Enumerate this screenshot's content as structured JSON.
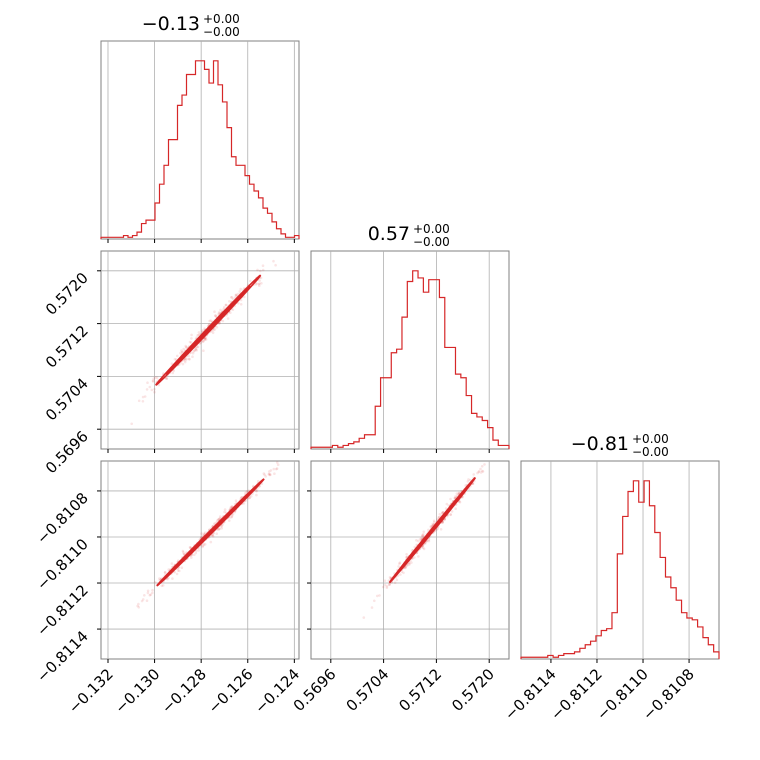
{
  "colors": {
    "accent": "#d62728",
    "grid": "#b0b0b0",
    "frame": "#808080"
  },
  "titles": [
    {
      "main": "−0.13",
      "sup": "+0.00",
      "sub": "−0.00"
    },
    {
      "main": "0.57",
      "sup": "+0.00",
      "sub": "−0.00"
    },
    {
      "main": "−0.81",
      "sup": "+0.00",
      "sub": "−0.00"
    }
  ],
  "chart_data": {
    "type": "corner",
    "params": [
      {
        "range": [
          -0.1323,
          -0.1238
        ],
        "ticks": [
          -0.132,
          -0.13,
          -0.128,
          -0.126,
          -0.124
        ],
        "tick_labels": [
          "−0.132",
          "−0.130",
          "−0.128",
          "−0.126",
          "−0.124"
        ]
      },
      {
        "range": [
          0.5693,
          0.5723
        ],
        "ticks": [
          0.5696,
          0.5704,
          0.5712,
          0.572
        ],
        "tick_labels": [
          "0.5696",
          "0.5704",
          "0.5712",
          "0.5720"
        ]
      },
      {
        "range": [
          -0.81153,
          -0.81067
        ],
        "ticks": [
          -0.8114,
          -0.8112,
          -0.811,
          -0.8108
        ],
        "tick_labels": [
          "−0.8114",
          "−0.8112",
          "−0.8110",
          "−0.8108"
        ]
      }
    ],
    "histograms": [
      [
        1,
        1,
        1,
        1,
        1,
        2,
        1,
        2,
        4,
        9,
        11,
        11,
        21,
        32,
        43,
        58,
        58,
        78,
        84,
        96,
        96,
        104,
        104,
        99,
        91,
        104,
        90,
        80,
        65,
        48,
        43,
        43,
        37,
        32,
        28,
        24,
        18,
        15,
        10,
        6,
        3,
        1,
        1,
        2
      ],
      [
        1,
        1,
        1,
        1,
        2,
        1,
        2,
        3,
        4,
        6,
        8,
        8,
        24,
        40,
        40,
        54,
        56,
        74,
        94,
        100,
        96,
        88,
        95,
        95,
        85,
        57,
        57,
        42,
        40,
        30,
        20,
        18,
        16,
        12,
        5,
        2,
        2
      ],
      [
        1,
        1,
        1,
        1,
        1,
        2,
        1,
        2,
        3,
        3,
        4,
        6,
        8,
        10,
        13,
        16,
        17,
        26,
        59,
        80,
        94,
        100,
        88,
        100,
        86,
        71,
        57,
        46,
        40,
        33,
        26,
        23,
        22,
        18,
        12,
        8,
        4
      ]
    ],
    "joint_contours": [
      {
        "pair": [
          0,
          1
        ],
        "center": [
          -0.1277,
          0.5711
        ],
        "axis": [
          0.00225,
          0.000833
        ],
        "half_widths": [
          9e-06,
          2e-05,
          3.4e-05
        ]
      },
      {
        "pair": [
          0,
          2
        ],
        "center": [
          -0.1276,
          -0.81098
        ],
        "axis": [
          0.0023,
          0.000232
        ],
        "half_widths": [
          3e-06,
          5.5e-06,
          8.5e-06
        ]
      },
      {
        "pair": [
          1,
          2
        ],
        "center": [
          0.57114,
          -0.81097
        ],
        "axis": [
          0.00065,
          0.000228
        ],
        "half_widths": [
          2.5e-06,
          5e-06,
          8e-06
        ]
      }
    ]
  }
}
